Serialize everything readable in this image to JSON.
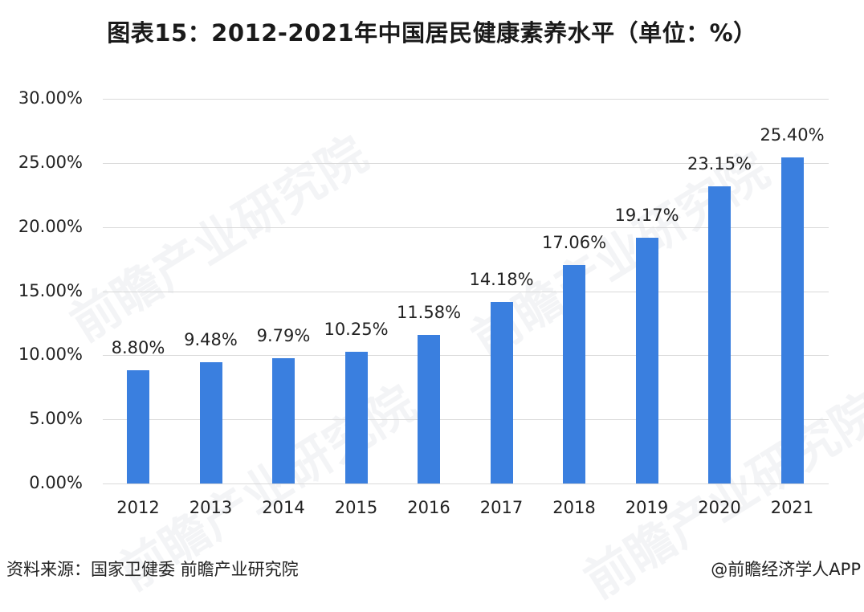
{
  "title": "图表15：2012-2021年中国居民健康素养水平（单位：%）",
  "footer": {
    "source": "资料来源：国家卫健委 前瞻产业研究院",
    "credit": "@前瞻经济学人APP"
  },
  "watermark": "前瞻产业研究院",
  "colors": {
    "bar": "#3a7fdf",
    "grid": "#d9d9d9",
    "text": "#222222"
  },
  "chart_data": {
    "type": "bar",
    "title": "图表15：2012-2021年中国居民健康素养水平（单位：%）",
    "xlabel": "",
    "ylabel": "",
    "categories": [
      "2012",
      "2013",
      "2014",
      "2015",
      "2016",
      "2017",
      "2018",
      "2019",
      "2020",
      "2021"
    ],
    "values": [
      8.8,
      9.48,
      9.79,
      10.25,
      11.58,
      14.18,
      17.06,
      19.17,
      23.15,
      25.4
    ],
    "value_labels": [
      "8.80%",
      "9.48%",
      "9.79%",
      "10.25%",
      "11.58%",
      "14.18%",
      "17.06%",
      "19.17%",
      "23.15%",
      "25.40%"
    ],
    "ylim": [
      0,
      30
    ],
    "yticks": [
      "0.00%",
      "5.00%",
      "10.00%",
      "15.00%",
      "20.00%",
      "25.00%",
      "30.00%"
    ],
    "grid": true,
    "legend": null,
    "series": [
      {
        "name": "健康素养水平",
        "values": [
          8.8,
          9.48,
          9.79,
          10.25,
          11.58,
          14.18,
          17.06,
          19.17,
          23.15,
          25.4
        ]
      }
    ]
  }
}
